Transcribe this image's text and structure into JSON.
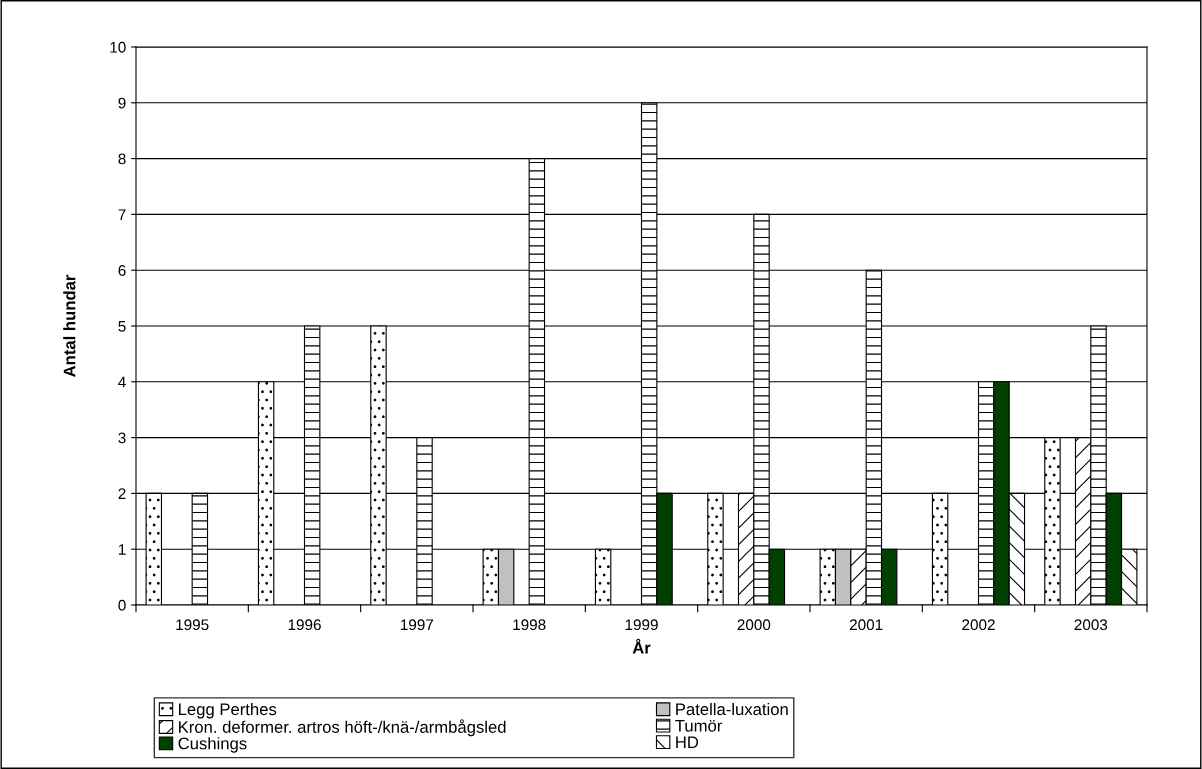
{
  "chart_data": {
    "type": "bar",
    "xlabel": "År",
    "ylabel": "Antal hundar",
    "categories": [
      "1995",
      "1996",
      "1997",
      "1998",
      "1999",
      "2000",
      "2001",
      "2002",
      "2003"
    ],
    "series": [
      {
        "name": "Legg Perthes",
        "color": "#ffffff",
        "values": [
          2,
          4,
          5,
          1,
          1,
          2,
          1,
          2,
          3
        ]
      },
      {
        "name": "Patella-luxation",
        "color": "#c0c0c0",
        "values": [
          0,
          0,
          0,
          1,
          0,
          0,
          1,
          0,
          0
        ]
      },
      {
        "name": "Kron. deformer. artros höft-/knä-/armbågsled",
        "color": "#ffffff",
        "values": [
          0,
          0,
          0,
          0,
          0,
          2,
          1,
          0,
          3
        ]
      },
      {
        "name": "Tumör",
        "color": "#ffffff",
        "values": [
          2,
          5,
          3,
          8,
          9,
          7,
          6,
          4,
          5
        ]
      },
      {
        "name": "Cushings",
        "color": "#004000",
        "values": [
          0,
          0,
          0,
          0,
          2,
          1,
          1,
          4,
          2
        ]
      },
      {
        "name": "HD",
        "color": "#ffffff",
        "values": [
          0,
          0,
          0,
          0,
          0,
          0,
          0,
          2,
          1
        ]
      }
    ],
    "ylim": [
      0,
      10
    ],
    "yticks": [
      0,
      1,
      2,
      3,
      4,
      5,
      6,
      7,
      8,
      9,
      10
    ],
    "grid": "y",
    "legend": "bottom"
  }
}
